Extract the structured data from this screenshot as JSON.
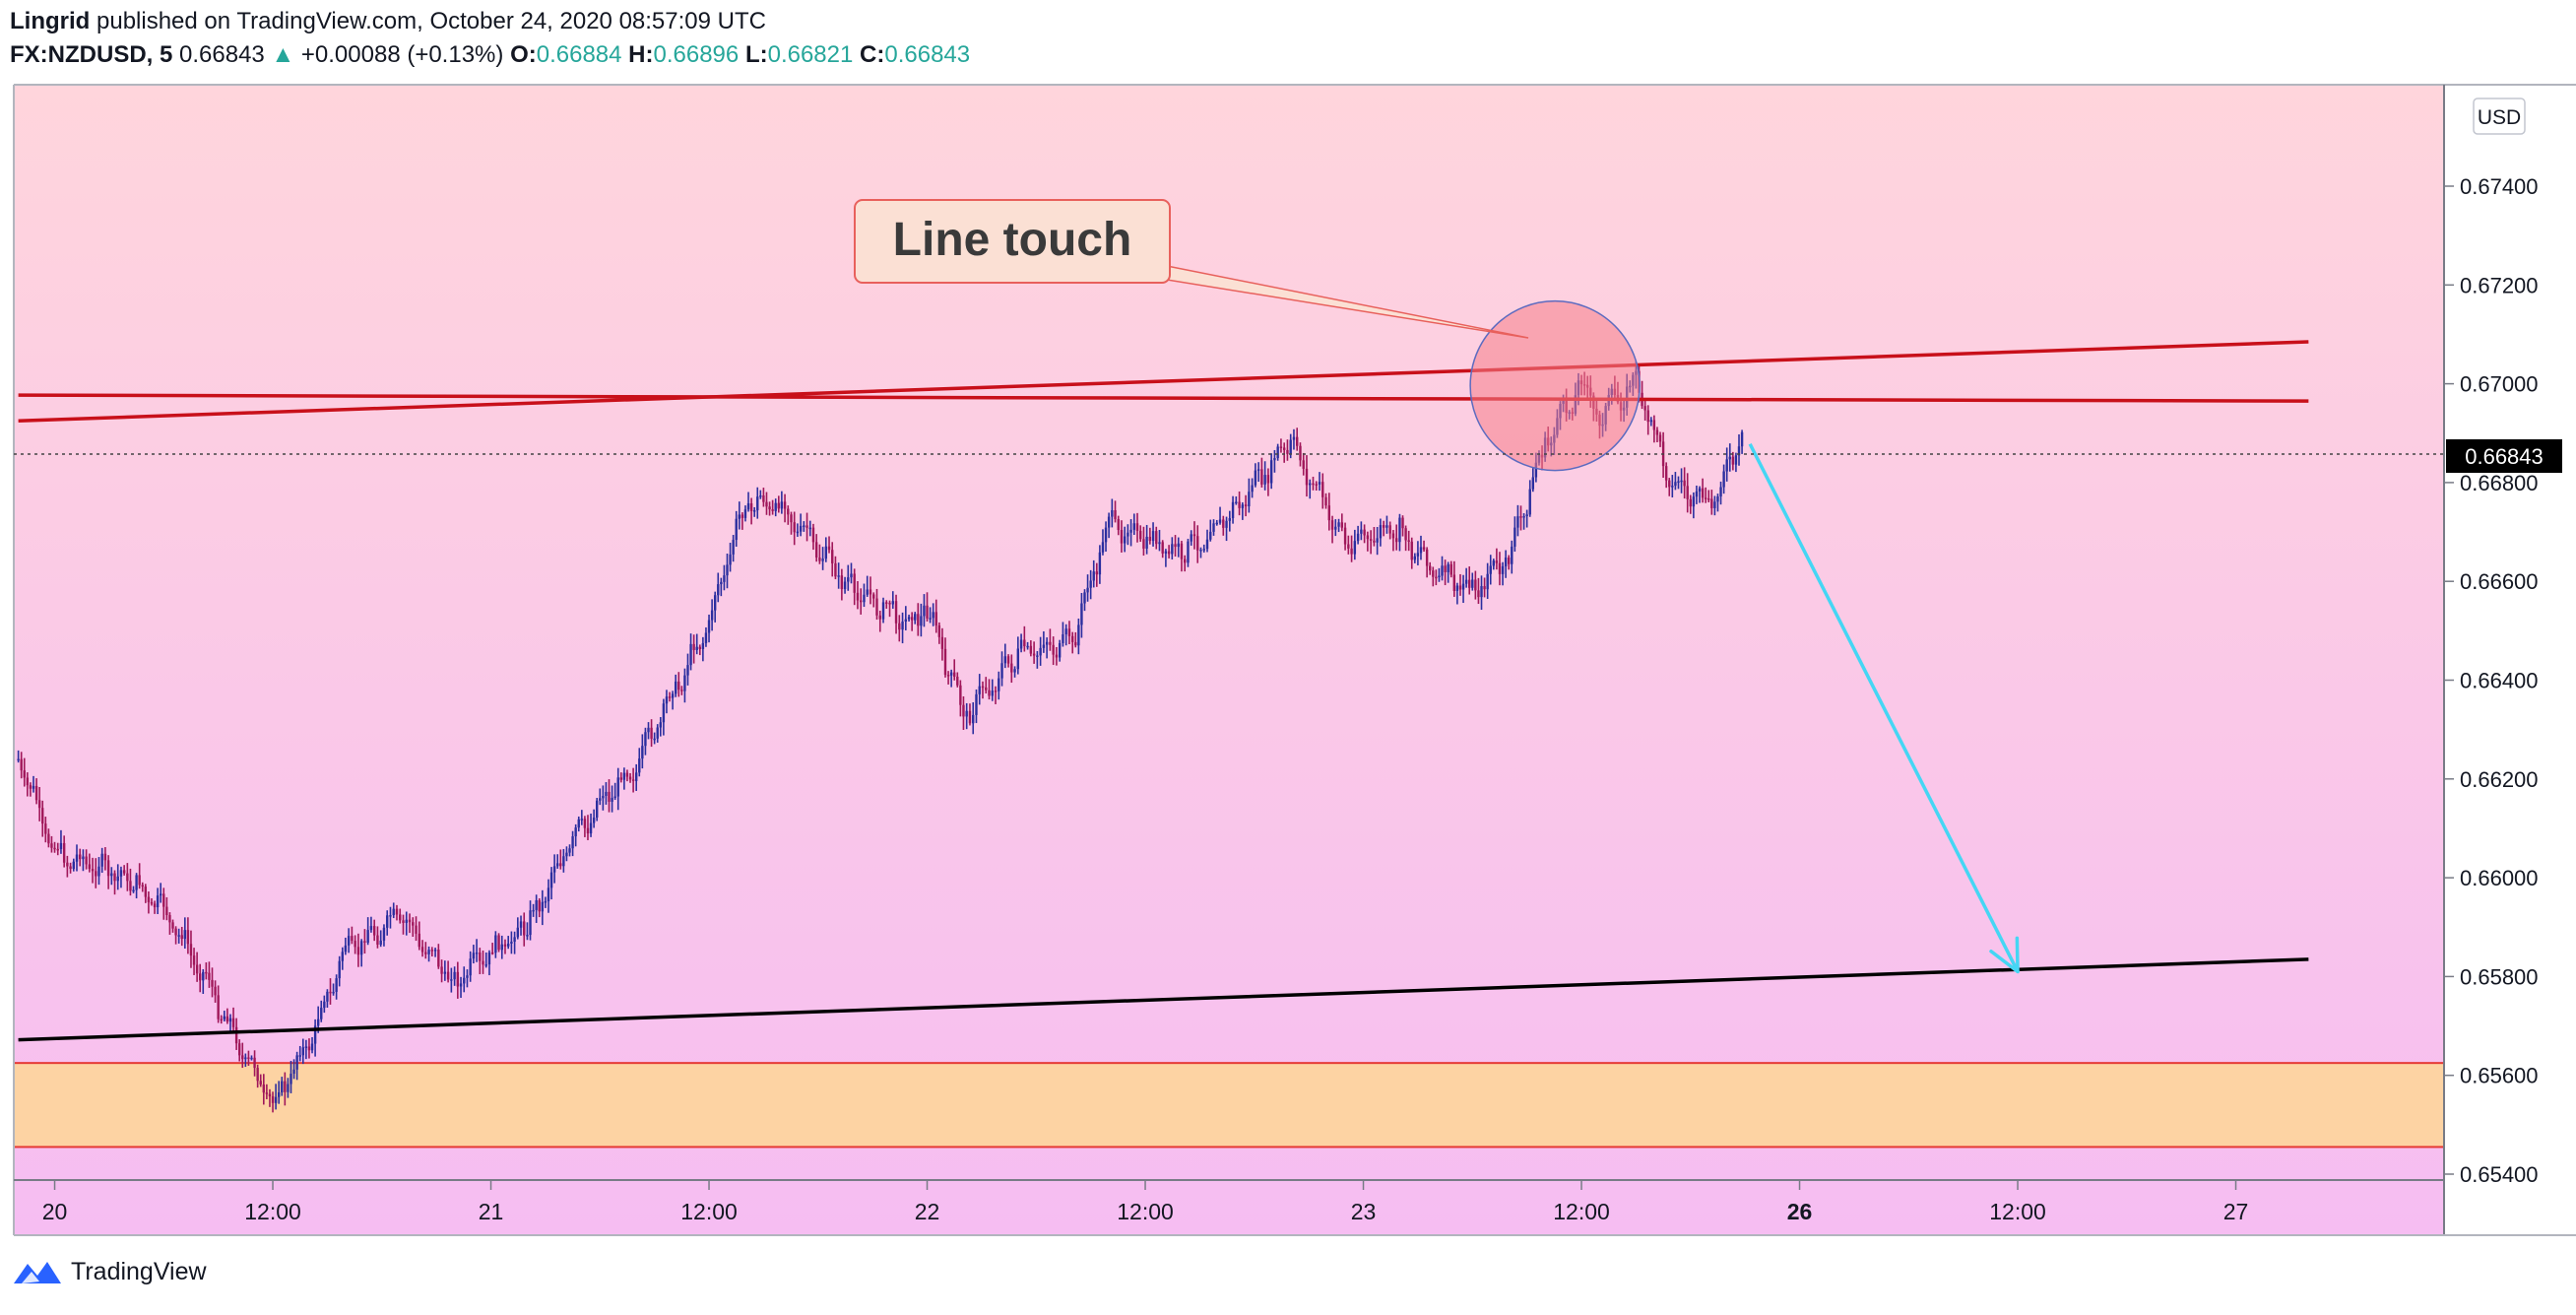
{
  "header": {
    "author": "Lingrid",
    "published": "published on TradingView.com, October 24, 2020 08:57:09 UTC",
    "symbol": "FX:NZDUSD, 5",
    "last": "0.66843",
    "change_arrow": "▲",
    "change": "+0.00088 (+0.13%)",
    "open_label": "O:",
    "open": "0.66884",
    "high_label": "H:",
    "high": "0.66896",
    "low_label": "L:",
    "low": "0.66821",
    "close_label": "C:",
    "close": "0.66843"
  },
  "axis": {
    "currency": "USD",
    "price_label": "0.66843",
    "y_ticks": [
      "0.67400",
      "0.67200",
      "0.67000",
      "0.66800",
      "0.66600",
      "0.66400",
      "0.66200",
      "0.66000",
      "0.65800",
      "0.65600",
      "0.65400"
    ],
    "x_ticks": [
      "20",
      "12:00",
      "21",
      "12:00",
      "22",
      "12:00",
      "23",
      "12:00",
      "26",
      "12:00",
      "27"
    ]
  },
  "annotation": {
    "label": "Line touch"
  },
  "brand": {
    "name": "TradingView",
    "icon": "tradingview-logo-icon"
  },
  "colors": {
    "background_top": "#ffd5dc",
    "background_bottom": "#f6bdf2",
    "resistance": "#c8101a",
    "support": "#000000",
    "arrow": "#45d6f4",
    "zone": "#fdd3a3",
    "candles": "#7a1f8f",
    "highlight": "#f5808a"
  },
  "chart_data": {
    "type": "line",
    "symbol": "FX:NZDUSD",
    "interval": "5",
    "x": [
      "Oct 19 22:00",
      "Oct 20 00:00",
      "Oct 20 04:00",
      "Oct 20 06:00",
      "Oct 20 08:00",
      "Oct 20 10:00",
      "Oct 20 12:00",
      "Oct 20 14:00",
      "Oct 20 16:00",
      "Oct 20 19:00",
      "Oct 20 22:00",
      "Oct 21 02:00",
      "Oct 21 04:00",
      "Oct 21 06:00",
      "Oct 21 08:00",
      "Oct 21 10:00",
      "Oct 21 12:00",
      "Oct 21 14:00",
      "Oct 21 16:00",
      "Oct 21 20:00",
      "Oct 21 23:00",
      "Oct 22 00:00",
      "Oct 22 02:00",
      "Oct 22 05:00",
      "Oct 22 08:00",
      "Oct 22 10:00",
      "Oct 22 14:00",
      "Oct 22 17:00",
      "Oct 22 20:00",
      "Oct 22 23:00",
      "Oct 23 02:00",
      "Oct 23 04:00",
      "Oct 23 06:00",
      "Oct 23 08:00",
      "Oct 23 10:00",
      "Oct 23 12:00",
      "Oct 23 13:00",
      "Oct 23 15:00",
      "Oct 23 17:00",
      "Oct 23 19:00",
      "Oct 23 21:00"
    ],
    "y": [
      0.6624,
      0.6605,
      0.66,
      0.6593,
      0.6582,
      0.6567,
      0.6554,
      0.6567,
      0.6585,
      0.6592,
      0.6579,
      0.659,
      0.6605,
      0.6615,
      0.6623,
      0.6637,
      0.6652,
      0.6676,
      0.6675,
      0.6658,
      0.6652,
      0.6655,
      0.6633,
      0.6645,
      0.6648,
      0.6672,
      0.6665,
      0.6675,
      0.6688,
      0.6668,
      0.667,
      0.6662,
      0.6658,
      0.6665,
      0.6688,
      0.67,
      0.6694,
      0.67,
      0.668,
      0.6675,
      0.669
    ],
    "ylim": [
      0.6536,
      0.6752
    ],
    "drawings": [
      {
        "type": "trendline",
        "name": "resistance-rising",
        "from": [
          "Oct 19 22:00",
          0.66925
        ],
        "to": [
          "Oct 27 04:00",
          0.67085
        ]
      },
      {
        "type": "trendline",
        "name": "resistance-flat",
        "from": [
          "Oct 19 22:00",
          0.66977
        ],
        "to": [
          "Oct 27 04:00",
          0.66965
        ]
      },
      {
        "type": "trendline",
        "name": "support",
        "from": [
          "Oct 19 22:00",
          0.65672
        ],
        "to": [
          "Oct 27 04:00",
          0.65835
        ]
      },
      {
        "type": "zone",
        "name": "demand-zone",
        "top": 0.65625,
        "bottom": 0.65455
      },
      {
        "type": "arrow",
        "name": "projection",
        "from": [
          "Oct 23 21:00",
          0.6689
        ],
        "to": [
          "Oct 26 12:00",
          0.6581
        ]
      },
      {
        "type": "circle",
        "name": "touch-highlight",
        "center": [
          "Oct 23 10:00",
          0.6699
        ]
      }
    ],
    "grid": false,
    "legend": "none"
  }
}
